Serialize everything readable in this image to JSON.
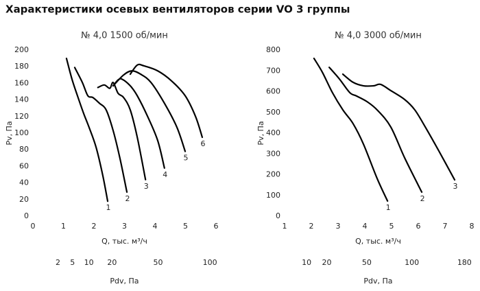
{
  "title": "Характеристики осевых вентиляторов серии VO 3 группы",
  "chart_data": [
    {
      "type": "line",
      "title": "№ 4,0 1500 об/мин",
      "xlabel": "Q, тыс. м³/ч",
      "ylabel": "Pv, Па",
      "xlim": [
        0,
        6
      ],
      "xticks": [
        0,
        1,
        2,
        3,
        4,
        5,
        6
      ],
      "ylim": [
        0,
        200
      ],
      "yticks": [
        0,
        20,
        40,
        60,
        80,
        100,
        120,
        140,
        160,
        180,
        200
      ],
      "x2label": "Pdv, Па",
      "x2scale": "sqrt",
      "x2lim": [
        0,
        107
      ],
      "x2ticks": [
        2,
        5,
        10,
        20,
        50,
        100
      ],
      "series": [
        {
          "name": "1",
          "color": "#000000",
          "x": [
            1.1,
            1.28,
            1.46,
            1.66,
            1.84,
            2.07,
            2.29,
            2.45
          ],
          "values": [
            190,
            165,
            145,
            124,
            107,
            83,
            49,
            18
          ]
        },
        {
          "name": "2",
          "color": "#000000",
          "x": [
            1.37,
            1.62,
            1.8,
            1.96,
            2.18,
            2.4,
            2.63,
            2.85,
            3.08
          ],
          "values": [
            179,
            161,
            145,
            143,
            136,
            128,
            103,
            70,
            29
          ]
        },
        {
          "name": "3",
          "color": "#000000",
          "x": [
            2.13,
            2.34,
            2.52,
            2.63,
            2.79,
            2.97,
            3.19,
            3.42,
            3.69
          ],
          "values": [
            155,
            158,
            154,
            161,
            148,
            143,
            128,
            95,
            44
          ]
        },
        {
          "name": "4",
          "color": "#000000",
          "x": [
            2.63,
            2.79,
            2.92,
            3.19,
            3.42,
            3.76,
            4.09,
            4.31
          ],
          "values": [
            157,
            164,
            165,
            157,
            145,
            120,
            91,
            58
          ]
        },
        {
          "name": "5",
          "color": "#000000",
          "x": [
            2.63,
            2.97,
            3.24,
            3.53,
            3.87,
            4.31,
            4.72,
            4.99
          ],
          "values": [
            157,
            170,
            175,
            171,
            161,
            136,
            107,
            78
          ]
        },
        {
          "name": "6",
          "color": "#000000",
          "x": [
            3.19,
            3.42,
            3.64,
            4.09,
            4.54,
            4.99,
            5.33,
            5.55
          ],
          "values": [
            171,
            182,
            181,
            175,
            163,
            145,
            120,
            95
          ]
        }
      ]
    },
    {
      "type": "line",
      "title": "№ 4,0 3000 об/мин",
      "xlabel": "Q, тыс. м³/ч",
      "ylabel": "Pv, Па",
      "xlim": [
        1,
        8
      ],
      "xticks": [
        1,
        2,
        3,
        4,
        5,
        6,
        7,
        8
      ],
      "ylim": [
        0,
        800
      ],
      "yticks": [
        0,
        100,
        200,
        300,
        400,
        500,
        600,
        700,
        800
      ],
      "x2label": "Pdv, Па",
      "x2scale": "sqrt",
      "x2lim": [
        3,
        193
      ],
      "x2ticks": [
        10,
        20,
        50,
        100,
        180
      ],
      "series": [
        {
          "name": "1",
          "color": "#000000",
          "x": [
            2.1,
            2.41,
            2.79,
            3.18,
            3.56,
            3.95,
            4.46,
            4.85
          ],
          "values": [
            760,
            694,
            595,
            512,
            446,
            347,
            182,
            73
          ]
        },
        {
          "name": "2",
          "color": "#000000",
          "x": [
            2.67,
            3.05,
            3.44,
            3.69,
            4.08,
            4.46,
            4.97,
            5.49,
            6.13
          ],
          "values": [
            717,
            661,
            595,
            579,
            552,
            512,
            430,
            281,
            116
          ]
        },
        {
          "name": "3",
          "color": "#000000",
          "x": [
            3.18,
            3.56,
            3.95,
            4.33,
            4.59,
            4.97,
            5.49,
            5.87,
            6.26,
            6.77,
            7.36
          ],
          "values": [
            684,
            645,
            628,
            628,
            635,
            605,
            562,
            512,
            430,
            314,
            175
          ]
        }
      ]
    }
  ]
}
